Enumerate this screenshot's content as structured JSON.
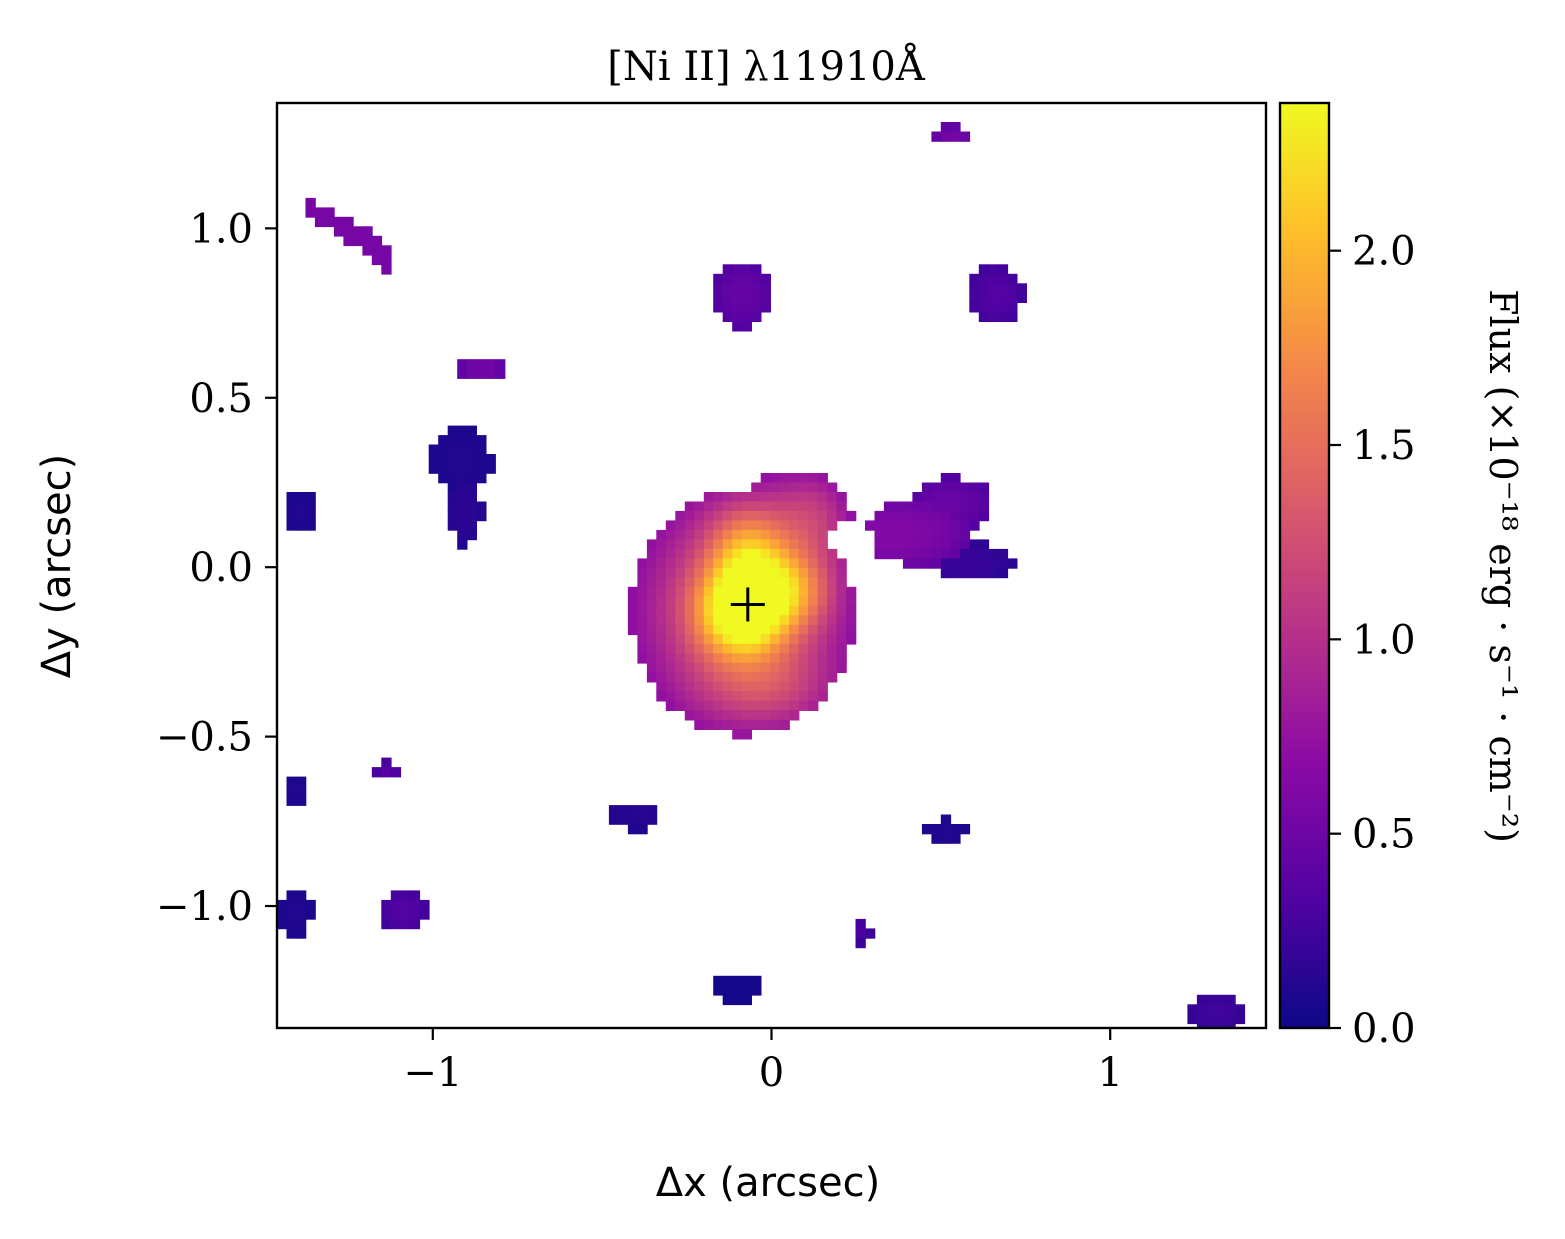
{
  "chart_data": {
    "type": "heatmap",
    "title": "[Ni II] λ11910Å",
    "xlabel": "Δx (arcsec)",
    "ylabel": "Δy (arcsec)",
    "xlim": [
      -1.46,
      1.46
    ],
    "ylim": [
      -1.36,
      1.37
    ],
    "xticks": [
      -1,
      0,
      1
    ],
    "xtick_labels": [
      "−1",
      "0",
      "1"
    ],
    "yticks": [
      -1.0,
      -0.5,
      0.0,
      0.5,
      1.0
    ],
    "ytick_labels": [
      "−1.0",
      "−0.5",
      "0.0",
      "0.5",
      "1.0"
    ],
    "grid": false,
    "colormap": "plasma",
    "colormap_stops": [
      "#0d0887",
      "#5302a3",
      "#8b0aa5",
      "#b83289",
      "#db5c68",
      "#f48849",
      "#febd2a",
      "#f0f921"
    ],
    "colorbar": {
      "label": "Flux (×10⁻¹⁸ erg · s⁻¹ · cm⁻²)",
      "vmin": 0.0,
      "vmax": 2.38,
      "ticks": [
        0.0,
        0.5,
        1.0,
        1.5,
        2.0
      ],
      "tick_labels": [
        "0.0",
        "0.5",
        "1.0",
        "1.5",
        "2.0"
      ]
    },
    "marker": {
      "symbol": "+",
      "x": -0.07,
      "y": -0.11
    },
    "peak": {
      "x": -0.1,
      "y": -0.12,
      "value": 2.35
    },
    "features": [
      {
        "name": "central-emission",
        "x": -0.05,
        "y": -0.1,
        "peak_value": 2.35
      },
      {
        "name": "northeast-extension",
        "x": 0.45,
        "y": 0.12,
        "peak_value": 0.7
      },
      {
        "name": "north-knot",
        "x": -0.1,
        "y": 0.82,
        "peak_value": 0.6
      },
      {
        "name": "northeast-knot",
        "x": 0.65,
        "y": 0.82,
        "peak_value": 0.4
      },
      {
        "name": "northwest-filament",
        "x": -1.25,
        "y": 1.0,
        "peak_value": 0.6
      },
      {
        "name": "west-filament",
        "x": -0.9,
        "y": 0.35,
        "peak_value": 0.3
      },
      {
        "name": "far-west-blob",
        "x": -1.4,
        "y": 0.18,
        "peak_value": 0.15
      },
      {
        "name": "top-knot",
        "x": 0.52,
        "y": 1.3,
        "peak_value": 0.6
      },
      {
        "name": "south-knots",
        "x": -0.1,
        "y": -1.0,
        "peak_value": 0.3
      }
    ]
  }
}
